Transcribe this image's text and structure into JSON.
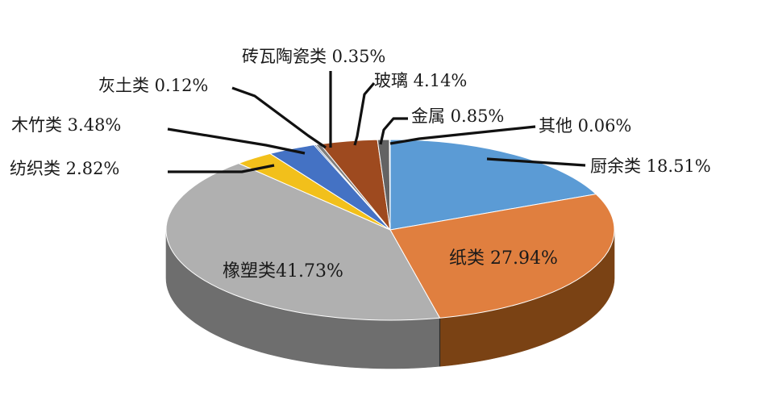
{
  "chart_data": {
    "type": "pie",
    "style": "3d",
    "start_angle_deg": 0,
    "direction": "clockwise",
    "slices": [
      {
        "name": "厨余类",
        "value": 18.51,
        "label": "厨余类 18.51%",
        "color": "#5b9bd5",
        "side_color": "#2f5f8c"
      },
      {
        "name": "纸类",
        "value": 27.94,
        "label": "纸类 27.94%",
        "color": "#e07f3f",
        "side_color": "#7a4214"
      },
      {
        "name": "橡塑类",
        "value": 41.73,
        "label": "橡塑类41.73%",
        "color": "#b0b0b0",
        "side_color": "#6e6e6e"
      },
      {
        "name": "纺织类",
        "value": 2.82,
        "label": "纺织类 2.82%",
        "color": "#f2c01b",
        "side_color": "#8a6a06"
      },
      {
        "name": "木竹类",
        "value": 3.48,
        "label": "木竹类 3.48%",
        "color": "#4472c4",
        "side_color": "#223f73"
      },
      {
        "name": "灰土类",
        "value": 0.12,
        "label": "灰土类 0.12%",
        "color": "#2b4f86",
        "side_color": "#16294a"
      },
      {
        "name": "砖瓦陶瓷类",
        "value": 0.35,
        "label": "砖瓦陶瓷类 0.35%",
        "color": "#7f7f7f",
        "side_color": "#444444"
      },
      {
        "name": "玻璃",
        "value": 4.14,
        "label": "玻璃 4.14%",
        "color": "#9e4a1f",
        "side_color": "#4f220c"
      },
      {
        "name": "金属",
        "value": 0.85,
        "label": "金属 0.85%",
        "color": "#636363",
        "side_color": "#333333"
      },
      {
        "name": "其他",
        "value": 0.06,
        "label": "其他 0.06%",
        "color": "#a6a6a6",
        "side_color": "#555555"
      }
    ]
  }
}
